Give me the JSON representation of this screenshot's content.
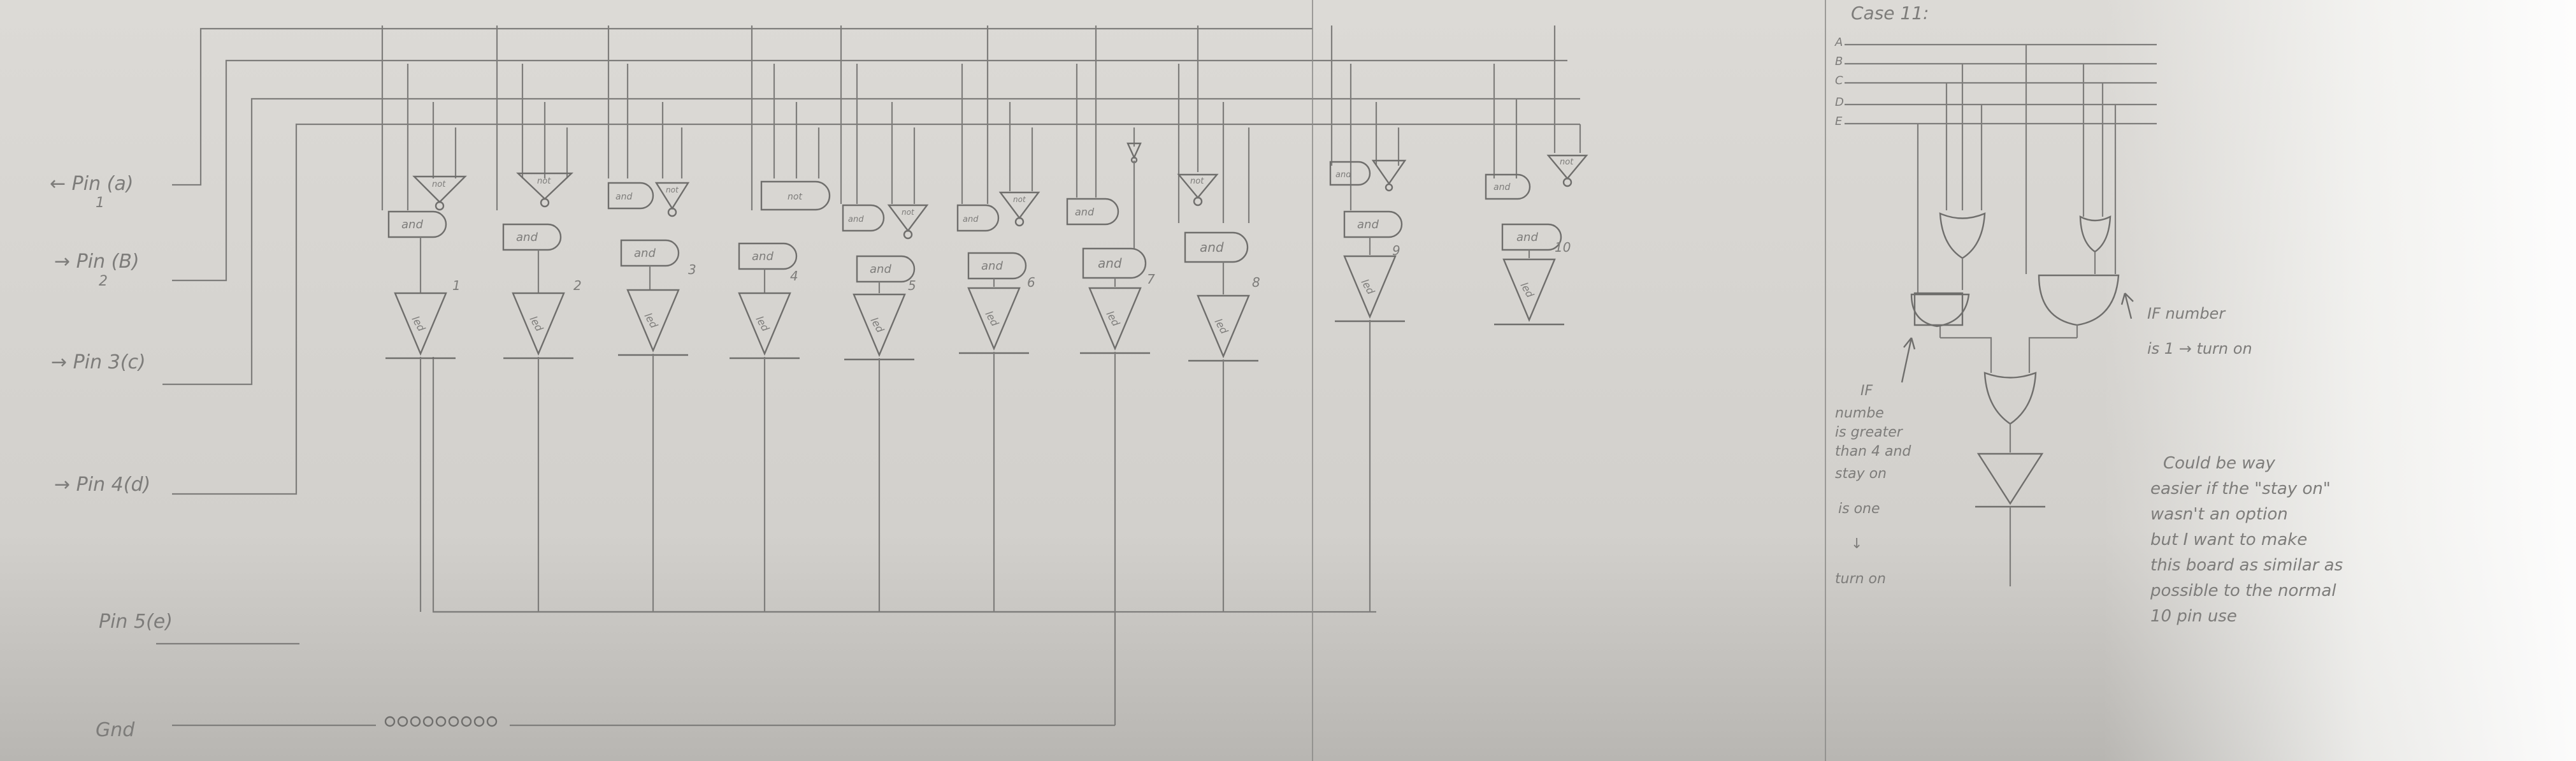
{
  "left_labels": [
    {
      "main": "← Pin (a)",
      "sub": "1"
    },
    {
      "main": "→ Pin (B)",
      "sub": "2"
    },
    {
      "main": "→ Pin 3(c)",
      "sub": ""
    },
    {
      "main": "→ Pin 4(d)",
      "sub": ""
    },
    {
      "main": "Pin 5(e)",
      "sub": ""
    }
  ],
  "gnd_label": "Gnd",
  "gate_words": {
    "and": "and",
    "not": "not",
    "led": "led"
  },
  "led_numbers": [
    "1",
    "2",
    "3",
    "4",
    "5",
    "6",
    "7",
    "8",
    "9",
    "10"
  ],
  "right_panel": {
    "title": "Case 11:",
    "bus_labels": [
      "A",
      "B",
      "C",
      "D",
      "E"
    ],
    "note_greater": [
      "IF",
      "numbe",
      "is greater",
      "than 4 and",
      "stay on",
      "is one",
      "↓",
      "turn on"
    ],
    "note_number": [
      "IF number",
      "is 1 → turn on"
    ],
    "note_easier": [
      "Could be way",
      "easier if the \"stay on\"",
      "wasn't an option",
      "but I want to make",
      "this board as similar as",
      "possible to the normal",
      "10 pin use"
    ]
  },
  "colors": {
    "paper": "#d6d4d0",
    "pencil": "#7e7d7b"
  }
}
